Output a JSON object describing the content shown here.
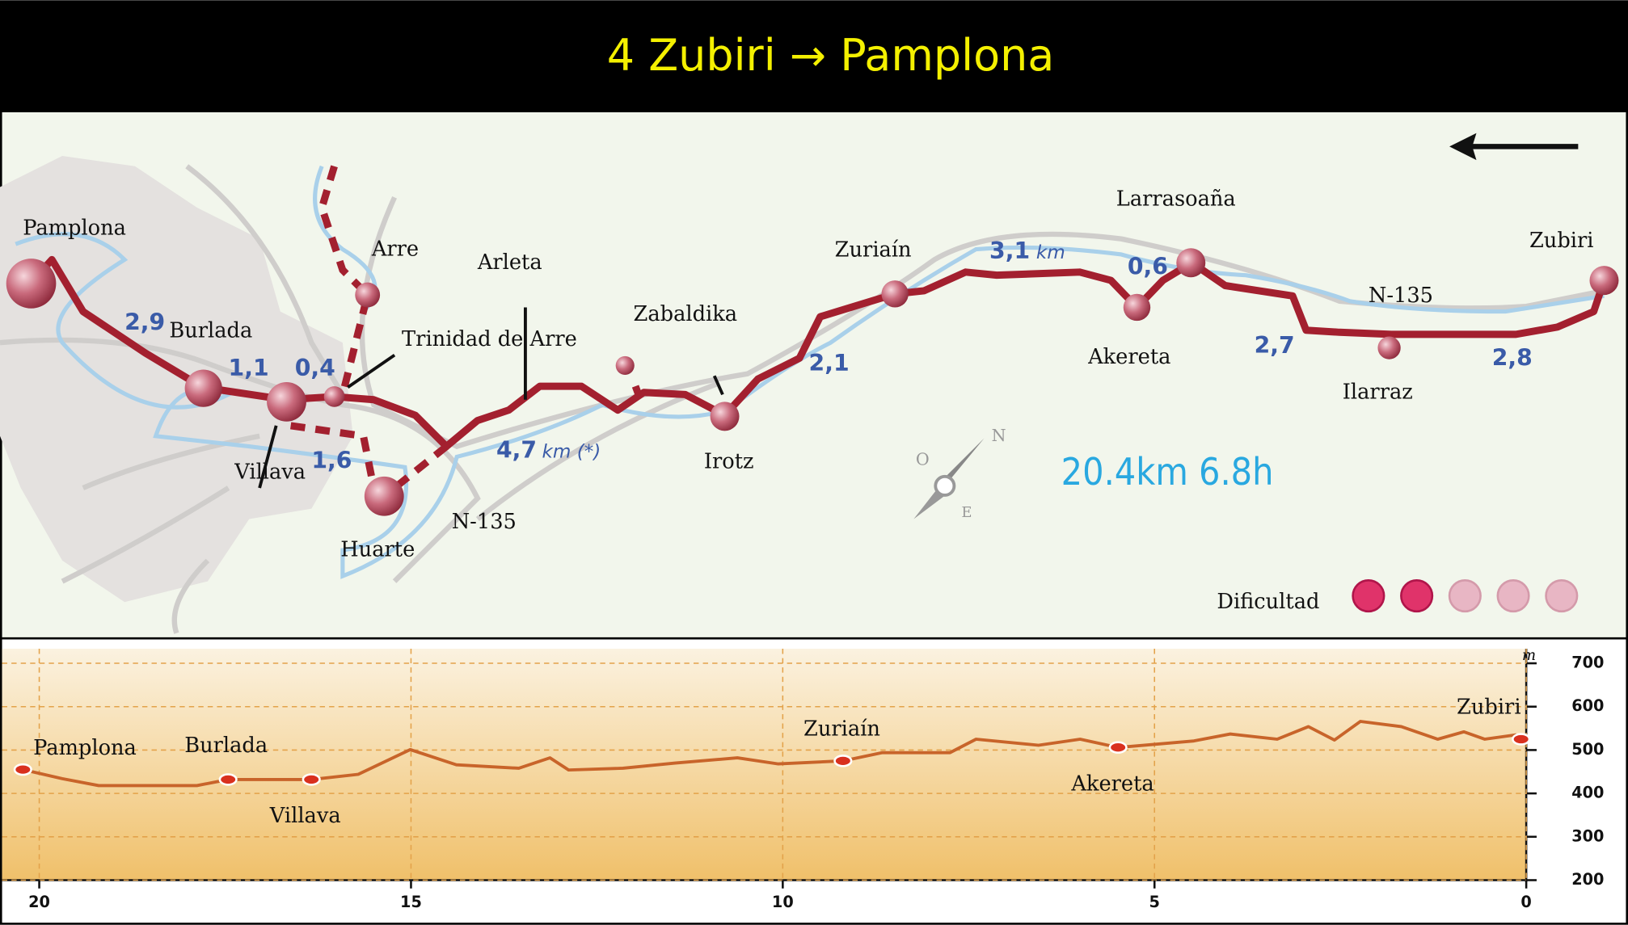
{
  "title": "4 Zubiri → Pamplona",
  "map": {
    "places": [
      "Pamplona",
      "Burlada",
      "Villava",
      "Trinidad de Arre",
      "Arre",
      "Arleta",
      "Huarte",
      "Zabaldika",
      "Irotz",
      "Zuriaín",
      "Larrasoaña",
      "Akereta",
      "Ilarraz",
      "Zubiri"
    ],
    "roads": [
      "N-135",
      "N-135"
    ],
    "segment_distances": [
      "2,9",
      "1,1",
      "0,4",
      "1,6",
      "4,7",
      "2,1",
      "3,1",
      "0,6",
      "2,7",
      "2,8"
    ],
    "units": [
      "km (*)",
      "km"
    ],
    "summary": "20.4km 6.8h",
    "difficulty": {
      "label": "Dificultad",
      "rating": 2,
      "max": 5
    }
  },
  "chart_data": {
    "type": "line",
    "color": "#c8642a",
    "ylabel": "m",
    "x": [
      20.22,
      19.69,
      19.2,
      17.88,
      17.46,
      16.34,
      15.71,
      15.01,
      14.39,
      13.55,
      13.13,
      12.88,
      12.15,
      11.45,
      10.61,
      10.06,
      9.19,
      8.66,
      7.75,
      7.4,
      6.56,
      6.0,
      5.49,
      4.47,
      3.98,
      3.35,
      2.93,
      2.58,
      2.23,
      1.68,
      1.19,
      0.84,
      0.56,
      0.14,
      0.07
    ],
    "values": [
      455,
      434,
      418,
      418,
      432,
      432,
      444,
      501,
      466,
      458,
      482,
      454,
      458,
      470,
      482,
      468,
      475,
      494,
      494,
      525,
      511,
      525,
      506,
      521,
      537,
      525,
      554,
      523,
      566,
      554,
      525,
      542,
      525,
      535,
      525
    ],
    "annotations": [
      {
        "text": "Pamplona",
        "x": 20.22,
        "y": 455
      },
      {
        "text": "Burlada",
        "x": 17.46,
        "y": 432
      },
      {
        "text": "Villava",
        "x": 16.34,
        "y": 432
      },
      {
        "text": "Zuriaín",
        "x": 9.19,
        "y": 475
      },
      {
        "text": "Akereta",
        "x": 5.49,
        "y": 506
      },
      {
        "text": "Zubiri",
        "x": 0.07,
        "y": 525
      }
    ],
    "xlim": [
      20.5,
      0
    ],
    "xticks": [
      20,
      15,
      10,
      5,
      0
    ],
    "ylim": [
      200,
      700
    ],
    "yticks": [
      200,
      300,
      400,
      500,
      600,
      700
    ],
    "grid": true
  }
}
